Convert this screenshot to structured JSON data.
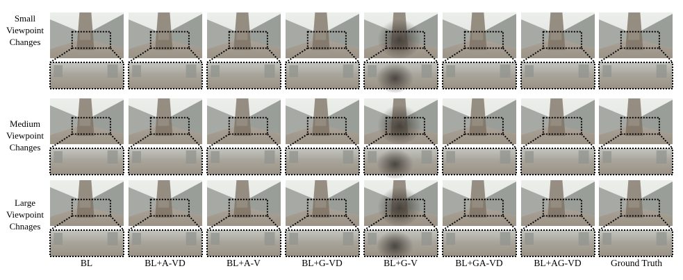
{
  "figure": {
    "rows": [
      {
        "label_lines": [
          "Small",
          "Viewpoint",
          "Changes"
        ]
      },
      {
        "label_lines": [
          "Medium",
          "Viewpoint",
          "Changes"
        ]
      },
      {
        "label_lines": [
          "Large",
          "Viewpoint",
          "Chnages"
        ]
      }
    ],
    "columns": [
      "BL",
      "BL+A-VD",
      "BL+A-V",
      "BL+G-VD",
      "BL+G-V",
      "BL+GA-VD",
      "BL+AG-VD",
      "Ground Truth"
    ],
    "colors": {
      "sky": "#dfe2df",
      "building": "#9a9e98",
      "ground": "#9c9387",
      "trunk": "#7a6d5f",
      "dark_artifact": "#3a3631",
      "dotted_box": "#000000"
    }
  }
}
